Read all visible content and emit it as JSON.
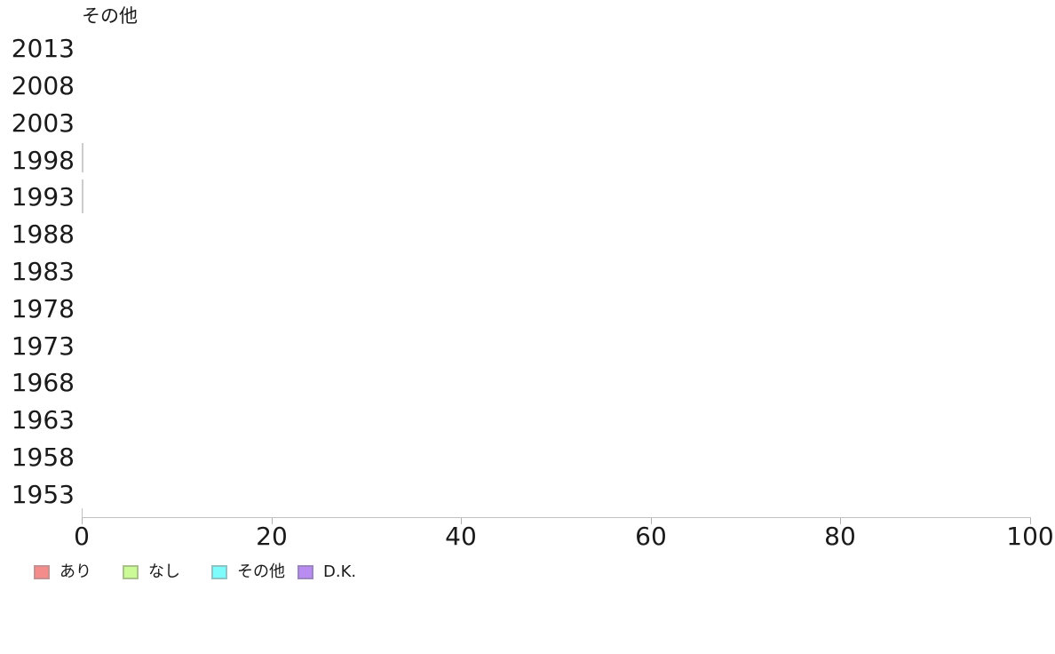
{
  "chart_data": {
    "type": "bar",
    "orientation": "horizontal",
    "stacked": true,
    "title": "その他",
    "categories": [
      "2013",
      "2008",
      "2003",
      "1998",
      "1993",
      "1988",
      "1983",
      "1978",
      "1973",
      "1968",
      "1963",
      "1958",
      "1953"
    ],
    "series": [
      {
        "name": "あり",
        "color": "#f58c8c",
        "values": [
          null,
          null,
          null,
          0,
          0,
          null,
          null,
          null,
          null,
          null,
          null,
          null,
          null
        ]
      },
      {
        "name": "なし",
        "color": "#ccfa96",
        "values": [
          null,
          null,
          null,
          0,
          0,
          null,
          null,
          null,
          null,
          null,
          null,
          null,
          null
        ]
      },
      {
        "name": "その他",
        "color": "#7efcfc",
        "values": [
          null,
          null,
          null,
          0,
          0,
          null,
          null,
          null,
          null,
          null,
          null,
          null,
          null
        ]
      },
      {
        "name": "D.K.",
        "color": "#b88cf0",
        "values": [
          null,
          null,
          null,
          0,
          0,
          null,
          null,
          null,
          null,
          null,
          null,
          null,
          null
        ]
      }
    ],
    "x_ticks": [
      "0",
      "20",
      "40",
      "60",
      "80",
      "100"
    ],
    "xlim": [
      0,
      100
    ],
    "grid": false,
    "legend_position": "bottom",
    "bar_outline_style": "background:#cccccc"
  },
  "legend": {
    "items": [
      {
        "label": "あり",
        "fill": "#f58c8c",
        "border": "#c59292",
        "swatch_style": "background:#f58c8c;border-color:#c59292"
      },
      {
        "label": "なし",
        "fill": "#ccfa96",
        "border": "#a9c18d",
        "swatch_style": "background:#ccfa96;border-color:#a9c18d"
      },
      {
        "label": "その他",
        "fill": "#7efcfc",
        "border": "#8fc3c6",
        "swatch_style": "background:#7efcfc;border-color:#8fc3c6"
      },
      {
        "label": "D.K.",
        "fill": "#b88cf0",
        "border": "#9c86bf",
        "swatch_style": "background:#b88cf0;border-color:#9c86bf"
      }
    ]
  }
}
